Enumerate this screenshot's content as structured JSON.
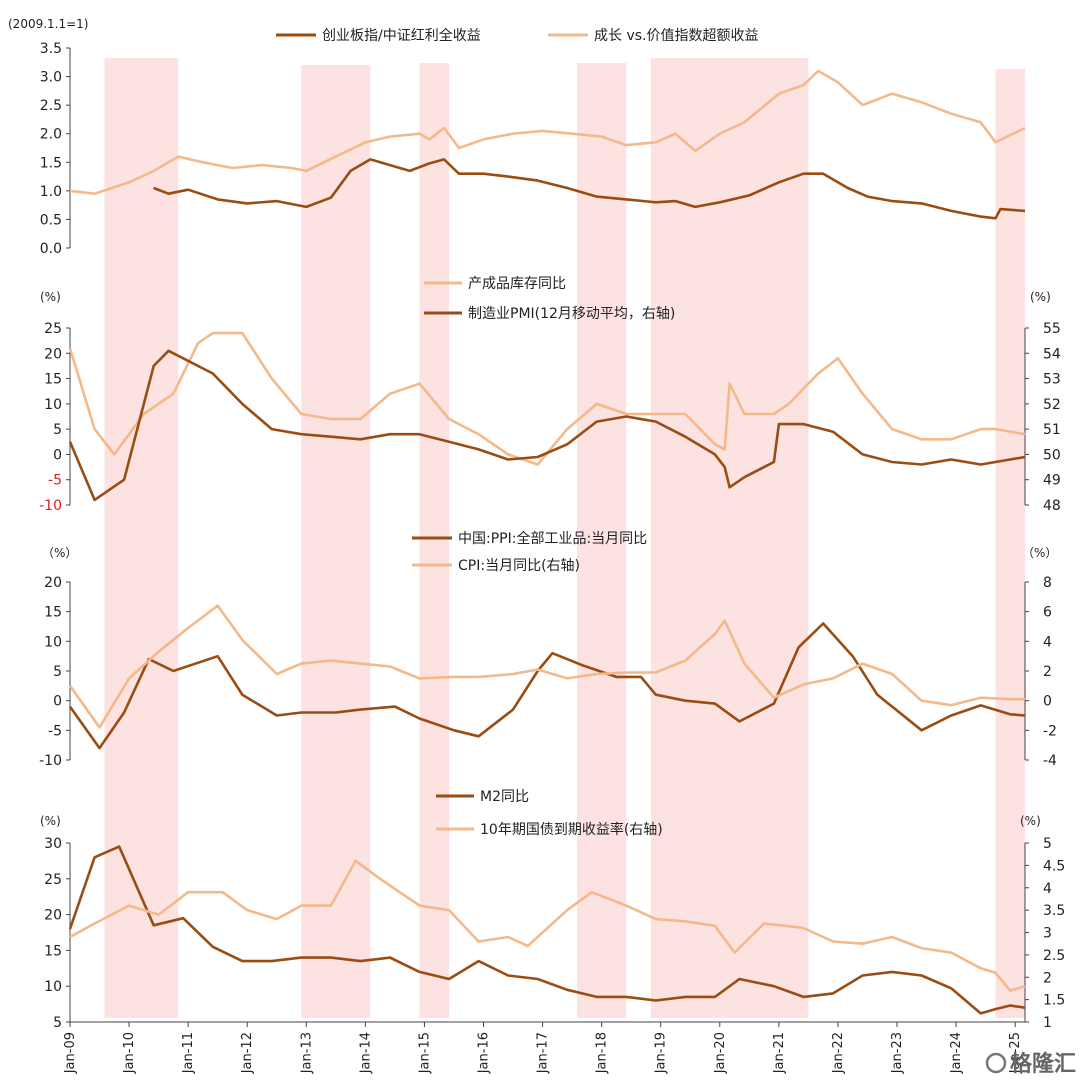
{
  "colors": {
    "dark": "#9a4d12",
    "light": "#f4b98a",
    "shade": "#fde2e2",
    "axis": "#444444",
    "neg_tick": "#dd2222"
  },
  "watermark": "格隆汇",
  "x_axis": {
    "start": "2009-01",
    "end": "2025-03",
    "tick_labels": [
      "Jan-09",
      "Jan-10",
      "Jan-11",
      "Jan-12",
      "Jan-13",
      "Jan-14",
      "Jan-15",
      "Jan-16",
      "Jan-17",
      "Jan-18",
      "Jan-19",
      "Jan-20",
      "Jan-21",
      "Jan-22",
      "Jan-23",
      "Jan-24",
      "Jan-25"
    ]
  },
  "shaded_periods": [
    {
      "from": "2009-08",
      "to": "2010-11"
    },
    {
      "from": "2012-12",
      "to": "2014-02"
    },
    {
      "from": "2014-12",
      "to": "2015-06"
    },
    {
      "from": "2017-08",
      "to": "2018-06"
    },
    {
      "from": "2018-11",
      "to": "2021-07"
    },
    {
      "from": "2024-09",
      "to": "2025-03"
    }
  ],
  "chart_data": [
    {
      "type": "line",
      "left_unit": "(2009.1.1=1)",
      "ylim": [
        0,
        3.5
      ],
      "yticks": [
        "0.0",
        "0.5",
        "1.0",
        "1.5",
        "2.0",
        "2.5",
        "3.0",
        "3.5"
      ],
      "series": [
        {
          "name": "创业板指/中证红利全收益",
          "axis": "left",
          "style": "dark",
          "x": [
            "2010-06",
            "2010-09",
            "2011-01",
            "2011-07",
            "2012-01",
            "2012-07",
            "2013-01",
            "2013-06",
            "2013-10",
            "2014-02",
            "2014-06",
            "2014-10",
            "2015-02",
            "2015-05",
            "2015-08",
            "2016-01",
            "2016-06",
            "2016-12",
            "2017-06",
            "2017-12",
            "2018-06",
            "2018-12",
            "2019-04",
            "2019-08",
            "2020-01",
            "2020-07",
            "2021-01",
            "2021-06",
            "2021-10",
            "2022-03",
            "2022-07",
            "2022-12",
            "2023-06",
            "2023-12",
            "2024-06",
            "2024-09",
            "2024-10",
            "2025-03"
          ],
          "values": [
            1.05,
            0.95,
            1.02,
            0.85,
            0.78,
            0.82,
            0.72,
            0.88,
            1.35,
            1.55,
            1.45,
            1.35,
            1.48,
            1.55,
            1.3,
            1.3,
            1.25,
            1.18,
            1.05,
            0.9,
            0.85,
            0.8,
            0.82,
            0.72,
            0.8,
            0.92,
            1.15,
            1.3,
            1.3,
            1.05,
            0.9,
            0.82,
            0.78,
            0.65,
            0.55,
            0.52,
            0.68,
            0.65
          ]
        },
        {
          "name": "成长 vs.价值指数超额收益",
          "axis": "left",
          "style": "light",
          "x": [
            "2009-01",
            "2009-06",
            "2010-01",
            "2010-06",
            "2010-11",
            "2011-04",
            "2011-10",
            "2012-04",
            "2012-10",
            "2013-01",
            "2013-07",
            "2014-01",
            "2014-06",
            "2014-12",
            "2015-02",
            "2015-05",
            "2015-08",
            "2016-01",
            "2016-07",
            "2017-01",
            "2017-07",
            "2018-01",
            "2018-06",
            "2018-12",
            "2019-04",
            "2019-08",
            "2020-01",
            "2020-06",
            "2021-01",
            "2021-06",
            "2021-09",
            "2022-01",
            "2022-06",
            "2022-12",
            "2023-06",
            "2023-12",
            "2024-06",
            "2024-09",
            "2025-03"
          ],
          "values": [
            1.0,
            0.95,
            1.15,
            1.35,
            1.6,
            1.5,
            1.4,
            1.45,
            1.4,
            1.35,
            1.6,
            1.85,
            1.95,
            2.0,
            1.9,
            2.1,
            1.75,
            1.9,
            2.0,
            2.05,
            2.0,
            1.95,
            1.8,
            1.85,
            2.0,
            1.7,
            2.0,
            2.2,
            2.7,
            2.85,
            3.1,
            2.9,
            2.5,
            2.7,
            2.55,
            2.35,
            2.2,
            1.85,
            2.1
          ]
        }
      ]
    },
    {
      "type": "line",
      "left_unit": "(%)",
      "right_unit": "(%)",
      "ylim": [
        -10,
        25
      ],
      "yticks": [
        "-10",
        "-5",
        "0",
        "5",
        "10",
        "15",
        "20",
        "25"
      ],
      "ylim_right": [
        48,
        55
      ],
      "yticks_right": [
        "48",
        "49",
        "50",
        "51",
        "52",
        "53",
        "54",
        "55"
      ],
      "series": [
        {
          "name": "产成品库存同比",
          "axis": "left",
          "style": "light",
          "x": [
            "2009-01",
            "2009-06",
            "2009-10",
            "2010-04",
            "2010-10",
            "2011-03",
            "2011-06",
            "2011-12",
            "2012-06",
            "2012-12",
            "2013-06",
            "2013-12",
            "2014-06",
            "2014-12",
            "2015-06",
            "2015-12",
            "2016-06",
            "2016-12",
            "2017-06",
            "2017-12",
            "2018-06",
            "2018-12",
            "2019-06",
            "2019-12",
            "2020-02",
            "2020-03",
            "2020-06",
            "2020-12",
            "2021-03",
            "2021-09",
            "2022-01",
            "2022-06",
            "2022-12",
            "2023-06",
            "2023-12",
            "2024-06",
            "2024-09",
            "2025-03"
          ],
          "values": [
            21,
            5,
            0,
            8,
            12,
            22,
            24,
            24,
            15,
            8,
            7,
            7,
            12,
            14,
            7,
            4,
            0,
            -2,
            5,
            10,
            8,
            8,
            8,
            2,
            1,
            14,
            8,
            8,
            10,
            16,
            19,
            12,
            5,
            3,
            3,
            5,
            5,
            4
          ]
        },
        {
          "name": "制造业PMI(12月移动平均，右轴)",
          "axis": "right",
          "style": "dark",
          "x": [
            "2009-01",
            "2009-06",
            "2009-12",
            "2010-06",
            "2010-09",
            "2011-06",
            "2011-12",
            "2012-06",
            "2012-12",
            "2013-06",
            "2013-12",
            "2014-06",
            "2014-12",
            "2015-06",
            "2015-12",
            "2016-06",
            "2016-12",
            "2017-06",
            "2017-12",
            "2018-06",
            "2018-12",
            "2019-06",
            "2019-12",
            "2020-02",
            "2020-03",
            "2020-06",
            "2020-12",
            "2021-01",
            "2021-06",
            "2021-12",
            "2022-06",
            "2022-12",
            "2023-06",
            "2023-12",
            "2024-06",
            "2024-12",
            "2025-03"
          ],
          "values": [
            50.5,
            48.2,
            49.0,
            53.5,
            54.1,
            53.2,
            52.0,
            51.0,
            50.8,
            50.7,
            50.6,
            50.8,
            50.8,
            50.5,
            50.2,
            49.8,
            49.9,
            50.4,
            51.3,
            51.5,
            51.3,
            50.7,
            50.0,
            49.5,
            48.7,
            49.1,
            49.7,
            51.2,
            51.2,
            50.9,
            50.0,
            49.7,
            49.6,
            49.8,
            49.6,
            49.8,
            49.9
          ]
        }
      ]
    },
    {
      "type": "line",
      "left_unit": "（%）",
      "right_unit": "（%）",
      "ylim": [
        -10,
        20
      ],
      "yticks": [
        "-10",
        "-5",
        "0",
        "5",
        "10",
        "15",
        "20"
      ],
      "ylim_right": [
        -4,
        8
      ],
      "yticks_right": [
        "-4",
        "-2",
        "0",
        "2",
        "4",
        "6",
        "8"
      ],
      "series": [
        {
          "name": "中国:PPI:全部工业品:当月同比",
          "axis": "left",
          "style": "dark",
          "x": [
            "2009-01",
            "2009-07",
            "2009-12",
            "2010-05",
            "2010-10",
            "2011-07",
            "2011-12",
            "2012-07",
            "2012-12",
            "2013-07",
            "2013-12",
            "2014-07",
            "2014-12",
            "2015-07",
            "2015-12",
            "2016-07",
            "2016-12",
            "2017-03",
            "2017-09",
            "2018-04",
            "2018-09",
            "2018-12",
            "2019-06",
            "2019-12",
            "2020-05",
            "2020-12",
            "2021-05",
            "2021-10",
            "2022-04",
            "2022-09",
            "2023-06",
            "2023-12",
            "2024-06",
            "2024-12",
            "2025-03"
          ],
          "values": [
            -1,
            -8,
            -2,
            7,
            5,
            7.5,
            1,
            -2.5,
            -2,
            -2,
            -1.5,
            -1,
            -3,
            -5,
            -6,
            -1.5,
            5,
            8,
            6,
            4,
            4,
            1,
            0,
            -0.5,
            -3.5,
            -0.5,
            9,
            13,
            7.5,
            1,
            -5,
            -2.5,
            -0.8,
            -2.3,
            -2.5
          ]
        },
        {
          "name": "CPI:当月同比(右轴)",
          "axis": "right",
          "style": "light",
          "x": [
            "2009-01",
            "2009-07",
            "2010-01",
            "2010-07",
            "2011-01",
            "2011-07",
            "2011-12",
            "2012-07",
            "2012-12",
            "2013-06",
            "2013-12",
            "2014-06",
            "2014-12",
            "2015-07",
            "2015-12",
            "2016-07",
            "2016-12",
            "2017-06",
            "2017-12",
            "2018-06",
            "2018-12",
            "2019-06",
            "2019-12",
            "2020-02",
            "2020-06",
            "2020-12",
            "2021-06",
            "2021-12",
            "2022-06",
            "2022-12",
            "2023-06",
            "2023-12",
            "2024-06",
            "2024-12",
            "2025-03"
          ],
          "values": [
            1,
            -1.8,
            1.5,
            3.3,
            4.9,
            6.4,
            4.1,
            1.8,
            2.5,
            2.7,
            2.5,
            2.3,
            1.5,
            1.6,
            1.6,
            1.8,
            2.1,
            1.5,
            1.8,
            1.9,
            1.9,
            2.7,
            4.5,
            5.4,
            2.5,
            0.2,
            1.1,
            1.5,
            2.5,
            1.8,
            0,
            -0.3,
            0.2,
            0.1,
            0.1
          ]
        }
      ]
    },
    {
      "type": "line",
      "left_unit": "(%)",
      "right_unit": "(%)",
      "ylim": [
        5,
        30
      ],
      "yticks": [
        "5",
        "10",
        "15",
        "20",
        "25",
        "30"
      ],
      "ylim_right": [
        1,
        5
      ],
      "yticks_right": [
        "1",
        "1.5",
        "2",
        "2.5",
        "3",
        "3.5",
        "4",
        "4.5",
        "5"
      ],
      "series": [
        {
          "name": "M2同比",
          "axis": "left",
          "style": "dark",
          "x": [
            "2009-01",
            "2009-06",
            "2009-11",
            "2010-06",
            "2010-12",
            "2011-06",
            "2011-12",
            "2012-06",
            "2012-12",
            "2013-06",
            "2013-12",
            "2014-06",
            "2014-12",
            "2015-06",
            "2015-12",
            "2016-06",
            "2016-12",
            "2017-06",
            "2017-12",
            "2018-06",
            "2018-12",
            "2019-06",
            "2019-12",
            "2020-05",
            "2020-12",
            "2021-06",
            "2021-12",
            "2022-06",
            "2022-12",
            "2023-06",
            "2023-12",
            "2024-06",
            "2024-09",
            "2024-12",
            "2025-03"
          ],
          "values": [
            18,
            28,
            29.5,
            18.5,
            19.5,
            15.5,
            13.5,
            13.5,
            14,
            14,
            13.5,
            14,
            12,
            11,
            13.5,
            11.5,
            11,
            9.5,
            8.5,
            8.5,
            8,
            8.5,
            8.5,
            11,
            10,
            8.5,
            9,
            11.5,
            12,
            11.5,
            9.7,
            6.2,
            6.8,
            7.3,
            7.0
          ]
        },
        {
          "name": "10年期国债到期收益率(右轴)",
          "axis": "right",
          "style": "light",
          "x": [
            "2009-01",
            "2009-06",
            "2010-01",
            "2010-07",
            "2011-01",
            "2011-08",
            "2012-01",
            "2012-07",
            "2012-12",
            "2013-06",
            "2013-11",
            "2014-04",
            "2014-12",
            "2015-06",
            "2015-12",
            "2016-06",
            "2016-10",
            "2017-06",
            "2017-11",
            "2018-06",
            "2018-12",
            "2019-06",
            "2019-12",
            "2020-04",
            "2020-10",
            "2021-06",
            "2021-12",
            "2022-06",
            "2022-12",
            "2023-06",
            "2023-12",
            "2024-06",
            "2024-09",
            "2024-12",
            "2025-03"
          ],
          "values": [
            2.9,
            3.2,
            3.6,
            3.4,
            3.9,
            3.9,
            3.5,
            3.3,
            3.6,
            3.6,
            4.6,
            4.2,
            3.6,
            3.5,
            2.8,
            2.9,
            2.7,
            3.5,
            3.9,
            3.6,
            3.3,
            3.25,
            3.15,
            2.55,
            3.2,
            3.1,
            2.8,
            2.75,
            2.9,
            2.65,
            2.55,
            2.2,
            2.1,
            1.7,
            1.8
          ]
        }
      ]
    }
  ]
}
